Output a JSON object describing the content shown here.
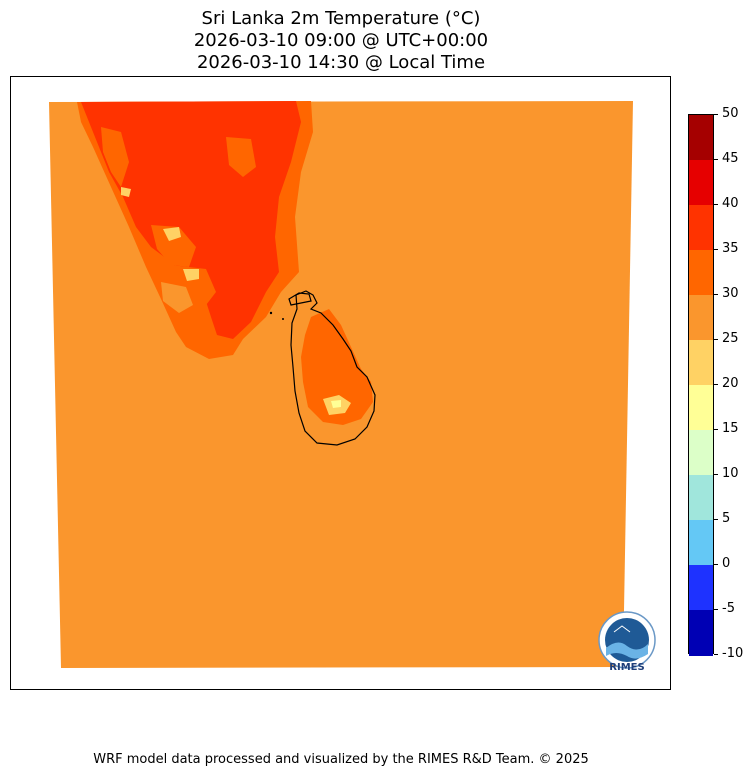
{
  "title": {
    "line1": "Sri Lanka 2m Temperature (°C)",
    "line2": "2026-03-10 09:00 @ UTC+00:00",
    "line3": "2026-03-10 14:30 @ Local Time"
  },
  "colorbar": {
    "levels": [
      "50",
      "45",
      "40",
      "35",
      "30",
      "25",
      "20",
      "15",
      "10",
      "5",
      "0",
      "-5",
      "-10"
    ],
    "colors": [
      "#a50000",
      "#e60000",
      "#ff3300",
      "#ff6600",
      "#fa962d",
      "#ffd264",
      "#ffff96",
      "#dcffc8",
      "#a0e6dc",
      "#64c8f5",
      "#1e32ff",
      "#0000b4"
    ]
  },
  "map": {
    "background_color": "#fa962d",
    "coastline_color": "#000000"
  },
  "logo": {
    "text": "RIMES"
  },
  "footer": {
    "credit": "WRF model data processed and visualized by the RIMES R&D Team. © 2025"
  }
}
